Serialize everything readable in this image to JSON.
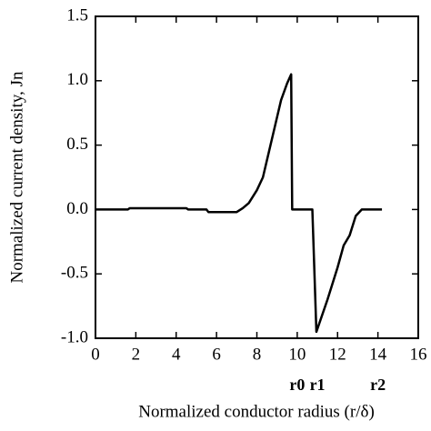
{
  "chart_data": {
    "type": "line",
    "xlabel": "Normalized conductor radius (r/δ)",
    "ylabel": "Normalized current density, Jn",
    "xlim": [
      0,
      16
    ],
    "xticks": [
      0,
      2,
      4,
      6,
      8,
      10,
      12,
      14,
      16
    ],
    "ylim": [
      -1.0,
      1.5
    ],
    "yticks": [
      {
        "value": -1.0,
        "label": "-1.0"
      },
      -0.5,
      {
        "value": 0.0,
        "label": "0.0"
      },
      0.5,
      {
        "value": 1.0,
        "label": "1.0"
      },
      1.5
    ],
    "color": "#000000",
    "x": [
      0,
      1.6,
      1.7,
      4.5,
      4.6,
      5.5,
      5.6,
      7.0,
      7.3,
      7.6,
      8.0,
      8.3,
      8.6,
      8.9,
      9.2,
      9.5,
      9.7,
      9.75,
      10.75,
      10.95,
      11.5,
      12.0,
      12.3,
      12.6,
      12.9,
      13.2,
      14.2
    ],
    "values": [
      0,
      0,
      0.01,
      0.01,
      0,
      0,
      -0.02,
      -0.02,
      0.01,
      0.05,
      0.15,
      0.25,
      0.45,
      0.65,
      0.85,
      0.98,
      1.05,
      0,
      0,
      -0.95,
      -0.7,
      -0.45,
      -0.28,
      -0.2,
      -0.05,
      0,
      0
    ],
    "annotations": [
      {
        "text": "r0",
        "x": 10
      },
      {
        "text": "r1",
        "x": 11
      },
      {
        "text": "r2",
        "x": 14
      }
    ]
  }
}
